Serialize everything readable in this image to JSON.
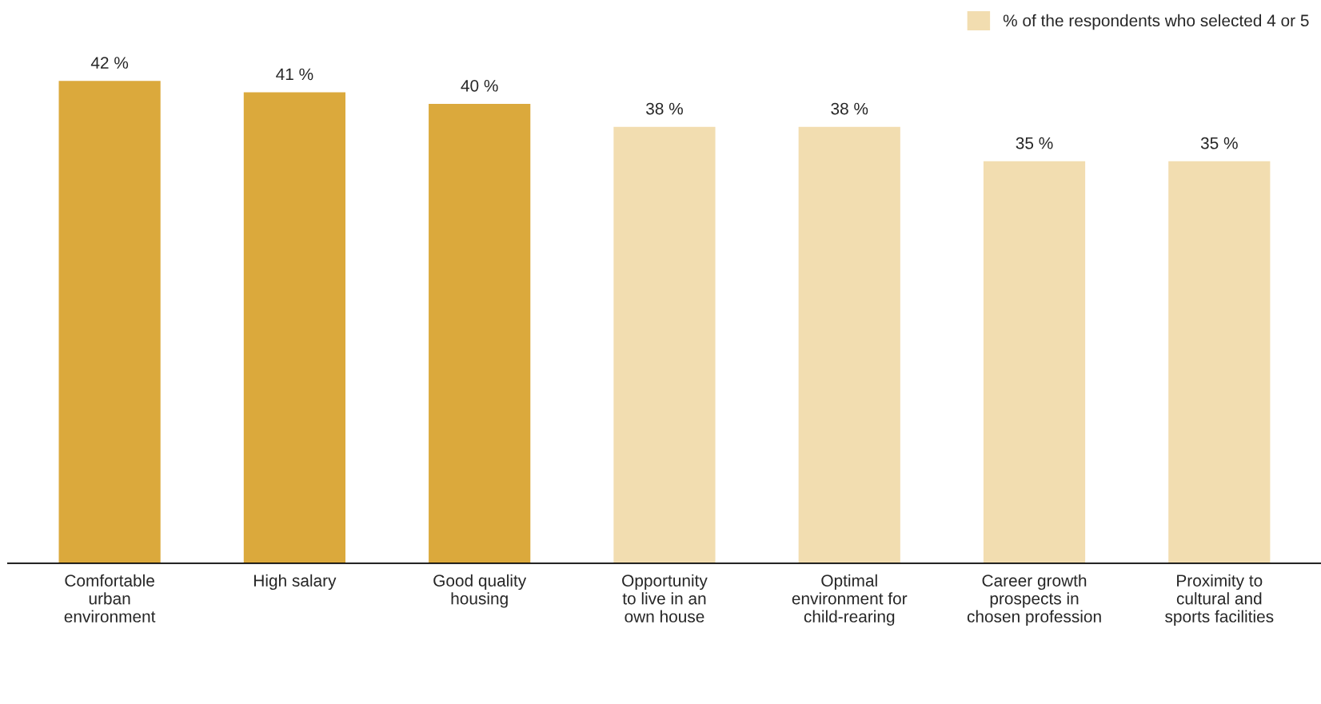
{
  "chart_data": {
    "type": "bar",
    "categories": [
      "Comfortable\nurban\nenvironment",
      "High salary",
      "Good quality\nhousing",
      "Opportunity\nto live in an\nown house",
      "Optimal\nenvironment for\nchild-rearing",
      "Career growth\nprospects in\nchosen profession",
      "Proximity to\ncultural and\nsports facilities"
    ],
    "series": [
      {
        "name": "% of the respondents who selected 4 or 5",
        "color": "#f2ddb0",
        "colors": [
          "#dba93c",
          "#dba93c",
          "#dba93c",
          "#f2ddb0",
          "#f2ddb0",
          "#f2ddb0",
          "#f2ddb0"
        ],
        "values": [
          42,
          41,
          40,
          38,
          38,
          35,
          35
        ],
        "value_labels": [
          "42 %",
          "41 %",
          "40 %",
          "38 %",
          "38 %",
          "35 %",
          "35 %"
        ]
      }
    ],
    "legend": "top right",
    "grid": false
  }
}
